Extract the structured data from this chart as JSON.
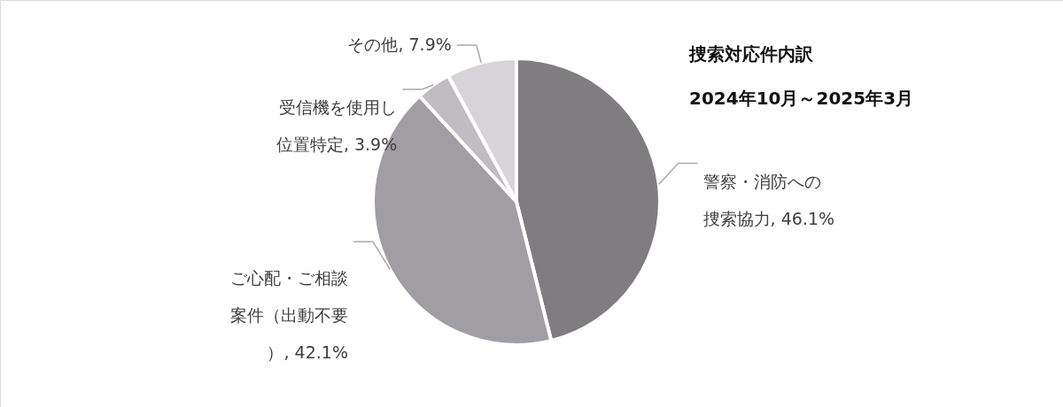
{
  "chart_data": {
    "type": "pie",
    "title": "捜索対応件内訳",
    "subtitle": "2024年10月～2025年3月",
    "categories": [
      "警察・消防への捜索協力",
      "ご心配・ご相談案件（出動不要）",
      "受信機を使用し位置特定",
      "その他"
    ],
    "values": [
      46.1,
      42.1,
      3.9,
      7.9
    ],
    "value_labels": [
      "46.1%",
      "42.1%",
      "3.9%",
      "7.9%"
    ],
    "colors": [
      "#7f7d80",
      "#a09ea2",
      "#bfbdc1",
      "#d6d4d9"
    ]
  }
}
